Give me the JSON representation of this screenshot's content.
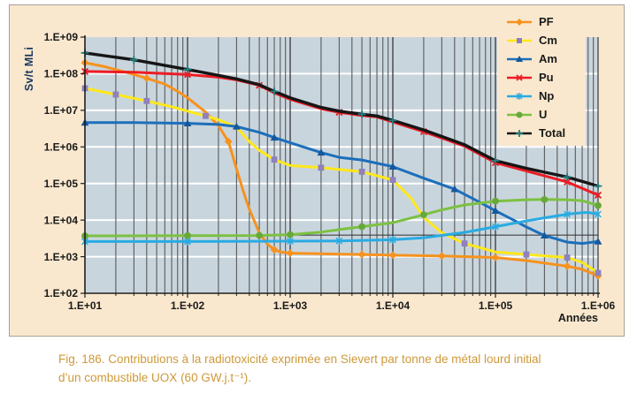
{
  "figure": {
    "panel_background": "#FAE8CE",
    "panel_border_color": "#A8A196",
    "plot_background": "#C9D5DD",
    "caption_color": "#CE9938",
    "ylabel_color": "#17375E"
  },
  "caption": {
    "line1": "Fig. 186. Contributions à la radiotoxicité exprimée en Sievert par tonne de métal lourd initial",
    "line2": "d’un combustible UOX (60 GW.j.t⁻¹)."
  },
  "chart_data": {
    "type": "line",
    "title": "",
    "xlabel": "Années",
    "ylabel": "Sv/t MLi",
    "x_scale": "log",
    "y_scale": "log",
    "xlim": [
      10,
      1000000
    ],
    "ylim": [
      100,
      1000000000
    ],
    "x_tick_labels": [
      "1.E+01",
      "1.E+02",
      "1.E+03",
      "1.E+04",
      "1.E+05",
      "1.E+06"
    ],
    "y_tick_labels": [
      "1.E+09",
      "1.E+08",
      "1.E+07",
      "1.E+06",
      "1.E+05",
      "1.E+04",
      "1.E+03",
      "1.E+02"
    ],
    "grid": {
      "h_major_color": "#FFFFFF",
      "v_minor_color": "#4D4D4D",
      "v_major_color": "#383838",
      "extra_hline_value": 3900,
      "extra_hline_color": "#2E2E2E"
    },
    "legend_position": "top-right",
    "legend_entries": [
      "PF",
      "Cm",
      "Am",
      "Pu",
      "Np",
      "U",
      "Total"
    ],
    "series": [
      {
        "name": "PF",
        "color": "#F6921E",
        "marker": "diamond",
        "marker_color": "#F6921E",
        "width": 3,
        "points": [
          [
            10,
            200000000.0
          ],
          [
            15,
            160000000.0
          ],
          [
            25,
            110000000.0
          ],
          [
            40,
            75000000.0
          ],
          [
            60,
            52000000.0
          ],
          [
            80,
            33000000.0
          ],
          [
            100,
            22000000.0
          ],
          [
            150,
            9000000.0
          ],
          [
            200,
            3800000.0
          ],
          [
            250,
            1400000.0
          ],
          [
            300,
            250000.0
          ],
          [
            350,
            60000.0
          ],
          [
            400,
            20000.0
          ],
          [
            500,
            4500.0
          ],
          [
            600,
            2200.0
          ],
          [
            700,
            1550.0
          ],
          [
            800,
            1350.0
          ],
          [
            1000,
            1250.0
          ],
          [
            2000,
            1200.0
          ],
          [
            5000,
            1150.0
          ],
          [
            10000,
            1100.0
          ],
          [
            30000,
            1050.0
          ],
          [
            100000,
            950.0
          ],
          [
            200000,
            780.0
          ],
          [
            500000,
            550.0
          ],
          [
            700000,
            450.0
          ],
          [
            1000000,
            300.0
          ]
        ],
        "marker_x": [
          10,
          40,
          250,
          700,
          1000,
          5000,
          10000,
          50000,
          100000,
          500000,
          1000000
        ]
      },
      {
        "name": "Cm",
        "color": "#FFE81A",
        "marker": "square",
        "marker_color": "#8E81BE",
        "width": 3,
        "points": [
          [
            10,
            40000000.0
          ],
          [
            20,
            27000000.0
          ],
          [
            40,
            18000000.0
          ],
          [
            70,
            12500000.0
          ],
          [
            100,
            9500000.0
          ],
          [
            150,
            7000000.0
          ],
          [
            200,
            5500000.0
          ],
          [
            300,
            3500000.0
          ],
          [
            400,
            1400000.0
          ],
          [
            500,
            800000.0
          ],
          [
            700,
            450000.0
          ],
          [
            1000,
            310000.0
          ],
          [
            2000,
            270000.0
          ],
          [
            5000,
            210000.0
          ],
          [
            10000,
            125000.0
          ],
          [
            15000,
            40000.0
          ],
          [
            20000,
            12000.0
          ],
          [
            30000,
            4500.0
          ],
          [
            50000,
            2300.0
          ],
          [
            100000,
            1350.0
          ],
          [
            200000,
            1150.0
          ],
          [
            500000,
            950.0
          ],
          [
            700000,
            700.0
          ],
          [
            1000000,
            360.0
          ]
        ],
        "marker_x": [
          10,
          20,
          50,
          150,
          700,
          2000,
          5000,
          10000,
          70000,
          200000,
          500000,
          1000000
        ]
      },
      {
        "name": "Am",
        "color": "#1C6FBB",
        "marker": "triangle",
        "marker_color": "#15589B",
        "width": 3,
        "points": [
          [
            10,
            4600000.0
          ],
          [
            30,
            4600000.0
          ],
          [
            100,
            4400000.0
          ],
          [
            200,
            4100000.0
          ],
          [
            300,
            3600000.0
          ],
          [
            500,
            2500000.0
          ],
          [
            700,
            1800000.0
          ],
          [
            1000,
            1300000.0
          ],
          [
            2000,
            700000.0
          ],
          [
            3000,
            520000.0
          ],
          [
            5000,
            440000.0
          ],
          [
            10000,
            290000.0
          ],
          [
            20000,
            140000.0
          ],
          [
            40000,
            70000.0
          ],
          [
            70000,
            31000.0
          ],
          [
            100000,
            18000.0
          ],
          [
            150000,
            10000.0
          ],
          [
            200000,
            6500.0
          ],
          [
            300000,
            3800.0
          ],
          [
            500000,
            2500.0
          ],
          [
            700000,
            2300.0
          ],
          [
            1000000,
            2600.0
          ]
        ],
        "marker_x": [
          10,
          100,
          300,
          700,
          2000,
          10000,
          40000,
          100000,
          300000,
          1000000
        ]
      },
      {
        "name": "Pu",
        "color": "#EC1C24",
        "marker": "x",
        "marker_color": "#EC1C24",
        "width": 3,
        "points": [
          [
            10,
            115000000.0
          ],
          [
            30,
            110000000.0
          ],
          [
            100,
            95000000.0
          ],
          [
            200,
            80000000.0
          ],
          [
            300,
            68000000.0
          ],
          [
            500,
            48000000.0
          ],
          [
            700,
            30000000.0
          ],
          [
            1000,
            20000000.0
          ],
          [
            2000,
            11000000.0
          ],
          [
            3000,
            8800000.0
          ],
          [
            5000,
            7200000.0
          ],
          [
            7000,
            6600000.0
          ],
          [
            10000,
            4800000.0
          ],
          [
            20000,
            2600000.0
          ],
          [
            50000,
            1050000.0
          ],
          [
            100000,
            370000.0
          ],
          [
            200000,
            220000.0
          ],
          [
            500000,
            110000.0
          ],
          [
            1000000,
            48000.0
          ]
        ],
        "marker_x": [
          10,
          100,
          500,
          3000,
          20000,
          100000,
          500000,
          1000000
        ]
      },
      {
        "name": "Np",
        "color": "#29ABE2",
        "marker": "asterisk",
        "marker_color": "#29ABE2",
        "width": 3,
        "points": [
          [
            10,
            2600.0
          ],
          [
            100,
            2600.0
          ],
          [
            1000,
            2650.0
          ],
          [
            3000,
            2700.0
          ],
          [
            10000,
            2900.0
          ],
          [
            20000,
            3300.0
          ],
          [
            50000,
            4600.0
          ],
          [
            100000,
            6600.0
          ],
          [
            200000,
            9500.0
          ],
          [
            300000,
            11500.0
          ],
          [
            500000,
            14500.0
          ],
          [
            700000,
            16000.0
          ],
          [
            800000,
            16200.0
          ],
          [
            1000000,
            14500.0
          ]
        ],
        "marker_x": [
          10,
          30,
          100,
          300,
          1000,
          3000,
          10000,
          100000,
          500000,
          1000000
        ]
      },
      {
        "name": "U",
        "color": "#7CC142",
        "marker": "circle",
        "marker_color": "#67A939",
        "width": 3,
        "points": [
          [
            10,
            3700.0
          ],
          [
            100,
            3750.0
          ],
          [
            500,
            3800.0
          ],
          [
            1000,
            4000.0
          ],
          [
            2000,
            4700.0
          ],
          [
            3000,
            5500.0
          ],
          [
            5000,
            6600.0
          ],
          [
            10000,
            8500.0
          ],
          [
            20000,
            14000.0
          ],
          [
            30000,
            19000.0
          ],
          [
            50000,
            26000.0
          ],
          [
            100000,
            33000.0
          ],
          [
            200000,
            36000.0
          ],
          [
            300000,
            36500.0
          ],
          [
            500000,
            36000.0
          ],
          [
            700000,
            34000.0
          ],
          [
            1000000,
            25000.0
          ]
        ],
        "marker_x": [
          10,
          50,
          150,
          400,
          1000,
          5000,
          20000,
          100000,
          300000,
          1000000
        ]
      },
      {
        "name": "Total",
        "color": "#161616",
        "marker": "plus",
        "marker_color": "#1F7F80",
        "width": 3.4,
        "points": [
          [
            10,
            370000000.0
          ],
          [
            30,
            240000000.0
          ],
          [
            100,
            130000000.0
          ],
          [
            200,
            90000000.0
          ],
          [
            300,
            72000000.0
          ],
          [
            500,
            50000000.0
          ],
          [
            700,
            33000000.0
          ],
          [
            1000,
            22000000.0
          ],
          [
            2000,
            12000000.0
          ],
          [
            3000,
            9500000.0
          ],
          [
            5000,
            7800000.0
          ],
          [
            7000,
            7000000.0
          ],
          [
            10000,
            5300000.0
          ],
          [
            20000,
            2900000.0
          ],
          [
            50000,
            1150000.0
          ],
          [
            100000,
            420000.0
          ],
          [
            200000,
            260000.0
          ],
          [
            500000,
            150000.0
          ],
          [
            1000000,
            85000.0
          ]
        ],
        "marker_x": [
          10,
          35,
          100,
          800,
          5000,
          10000,
          100000,
          400000,
          1000000
        ]
      }
    ]
  }
}
